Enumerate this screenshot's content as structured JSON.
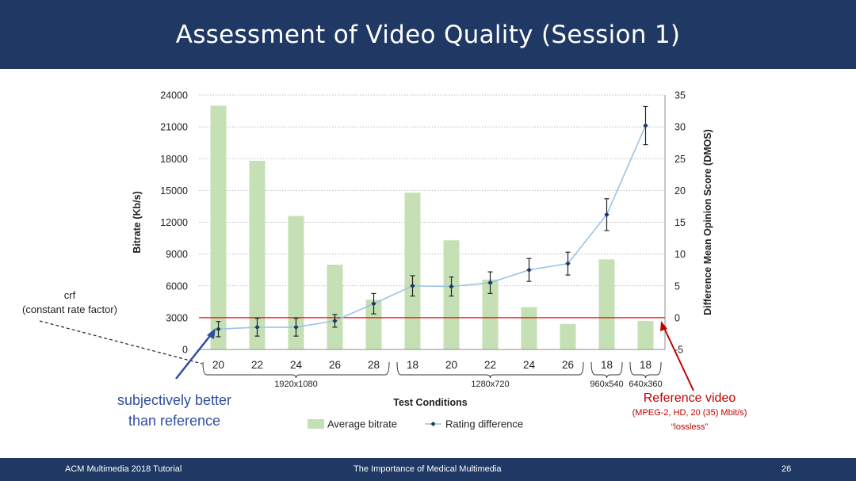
{
  "slide": {
    "title": "Assessment of Video Quality (Session 1)",
    "footer_left": "ACM Multimedia 2018 Tutorial",
    "footer_center": "The Importance of Medical Multimedia",
    "page_number": "26"
  },
  "annotations": {
    "crf_line1": "crf",
    "crf_line2": "(constant rate factor)",
    "better_line1": "subjectively better",
    "better_line2": "than reference",
    "ref_title": "Reference video",
    "ref_line1": "(MPEG-2, HD, 20 (35) Mbit/s)",
    "ref_line2": "“lossless”"
  },
  "colors": {
    "header": "#1f3864",
    "bar": "#c5e0b4",
    "line": "#9dc3e6",
    "marker": "#1f3864",
    "reference": "#ff0000",
    "annotation_blue": "#2e4ea0",
    "annotation_red": "#c00000"
  },
  "chart_data": {
    "type": "bar",
    "xlabel": "Test Conditions",
    "ylabel": "Bitrate (Kb/s)",
    "y2label": "Difference Mean Opinion Score (DMOS)",
    "categories": [
      "20",
      "22",
      "24",
      "26",
      "28",
      "18",
      "20",
      "22",
      "24",
      "26",
      "18",
      "18"
    ],
    "groups": [
      {
        "label": "1920x1080",
        "count": 5
      },
      {
        "label": "1280x720",
        "count": 5
      },
      {
        "label": "960x540",
        "count": 1
      },
      {
        "label": "640x360",
        "count": 1
      }
    ],
    "ylim": [
      0,
      24000
    ],
    "yticks": [
      0,
      3000,
      6000,
      9000,
      12000,
      15000,
      18000,
      21000,
      24000
    ],
    "y2lim": [
      -5,
      35
    ],
    "y2ticks": [
      -5,
      0,
      5,
      10,
      15,
      20,
      25,
      30,
      35
    ],
    "grid": true,
    "legend_position": "bottom",
    "reference_line_y2": 0,
    "series": [
      {
        "name": "Average bitrate",
        "type": "bar",
        "axis": "left",
        "values": [
          23000,
          17800,
          12600,
          8000,
          4700,
          14800,
          10300,
          6600,
          4000,
          2400,
          8500,
          2700
        ]
      },
      {
        "name": "Rating difference",
        "type": "line",
        "axis": "right",
        "values": [
          -1.8,
          -1.5,
          -1.5,
          -0.5,
          2.2,
          5.0,
          4.9,
          5.5,
          7.5,
          8.5,
          16.2,
          30.2
        ],
        "error": [
          1.2,
          1.4,
          1.4,
          1.0,
          1.6,
          1.6,
          1.5,
          1.7,
          1.8,
          1.8,
          2.5,
          3.0
        ]
      }
    ]
  }
}
